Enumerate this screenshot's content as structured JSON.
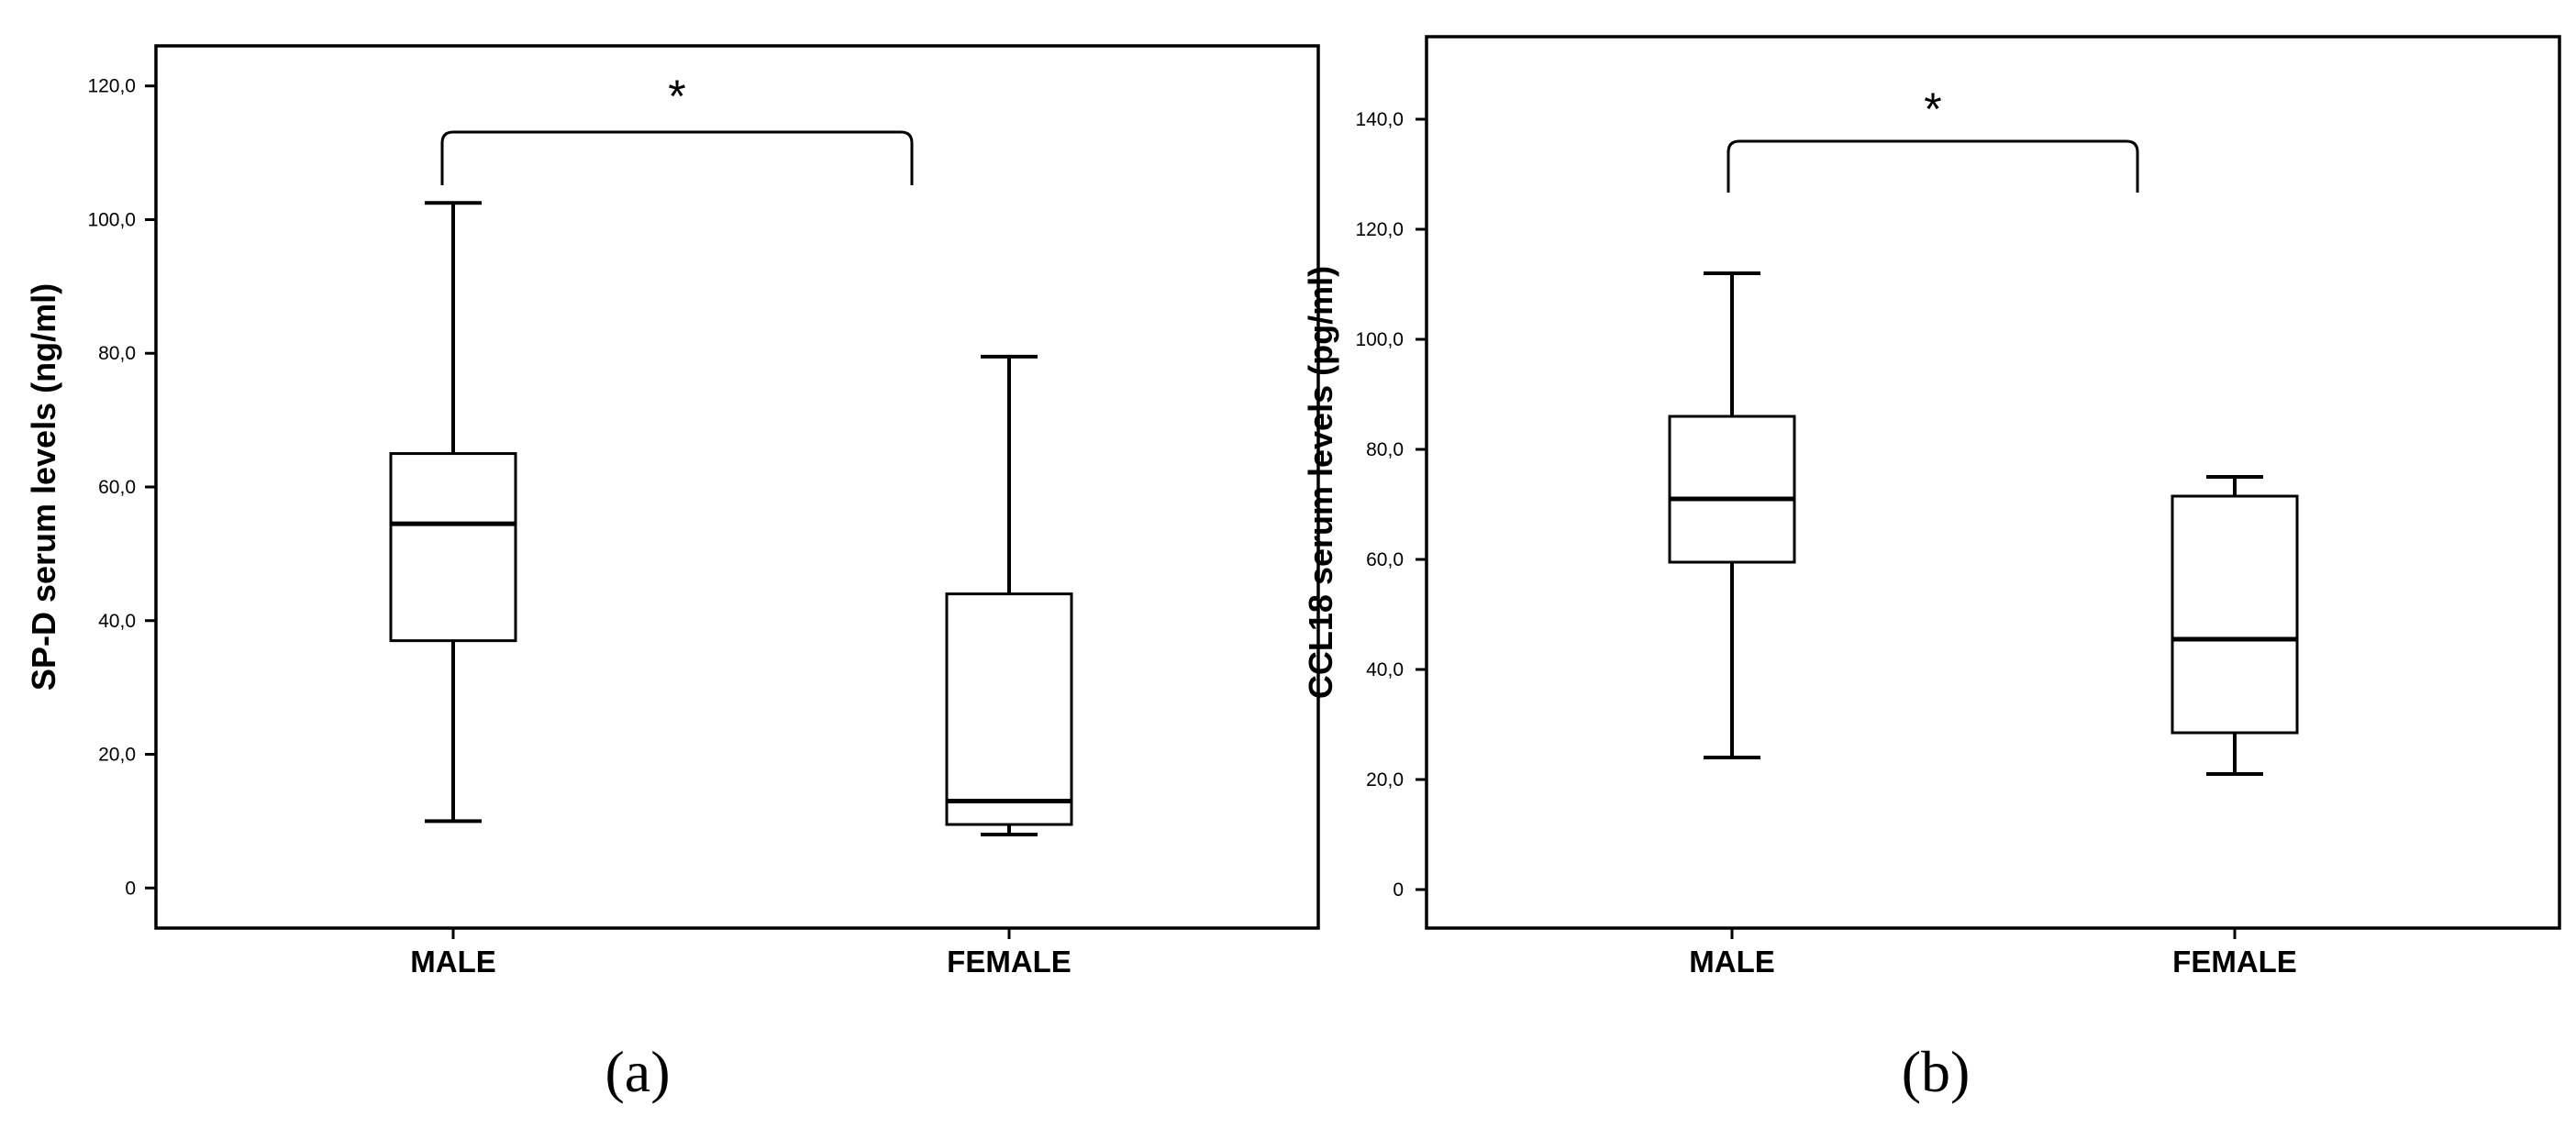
{
  "chart_data": [
    {
      "type": "box",
      "panel_label": "(a)",
      "ylabel": "SP-D serum levels (ng/ml)",
      "xlabel": "",
      "ylim": [
        -6,
        126
      ],
      "yticks": [
        0,
        20,
        40,
        60,
        80,
        100,
        120
      ],
      "ytick_labels": [
        "0",
        "20,0",
        "40,0",
        "60,0",
        "80,0",
        "100,0",
        "120,0"
      ],
      "categories": [
        "MALE",
        "FEMALE"
      ],
      "boxes": [
        {
          "category": "MALE",
          "min": 10.0,
          "q1": 37.0,
          "median": 54.5,
          "q3": 65.0,
          "max": 102.5
        },
        {
          "category": "FEMALE",
          "min": 8.0,
          "q1": 9.5,
          "median": 13.0,
          "q3": 44.0,
          "max": 79.5
        }
      ],
      "significance": {
        "from": "MALE",
        "to": "FEMALE",
        "label": "*"
      }
    },
    {
      "type": "box",
      "panel_label": "(b)",
      "ylabel": "CCL18 serum levels (pg/ml)",
      "xlabel": "",
      "ylim": [
        -7,
        155
      ],
      "yticks": [
        0,
        20,
        40,
        60,
        80,
        100,
        120,
        140
      ],
      "ytick_labels": [
        "0",
        "20,0",
        "40,0",
        "60,0",
        "80,0",
        "100,0",
        "120,0",
        "140,0"
      ],
      "categories": [
        "MALE",
        "FEMALE"
      ],
      "boxes": [
        {
          "category": "MALE",
          "min": 24.0,
          "q1": 59.5,
          "median": 71.0,
          "q3": 86.0,
          "max": 112.0
        },
        {
          "category": "FEMALE",
          "min": 21.0,
          "q1": 28.5,
          "median": 45.5,
          "q3": 71.5,
          "max": 75.0
        }
      ],
      "significance": {
        "from": "MALE",
        "to": "FEMALE",
        "label": "*"
      }
    }
  ]
}
